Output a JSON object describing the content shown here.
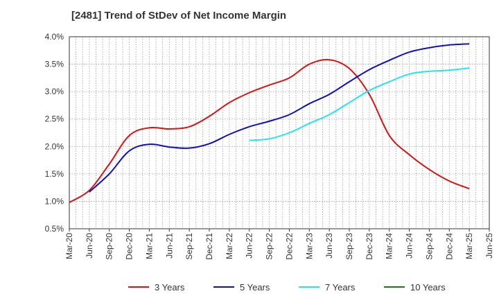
{
  "chart_data": {
    "type": "line",
    "title": "[2481]  Trend of StDev of Net Income Margin",
    "xlabel": "",
    "ylabel": "",
    "ylim": [
      0.5,
      4.0
    ],
    "yticks": [
      "4.0%",
      "3.5%",
      "3.0%",
      "2.5%",
      "2.0%",
      "1.5%",
      "1.0%",
      "0.5%"
    ],
    "x_tick_labels": [
      "Mar-20",
      "Jun-20",
      "Sep-20",
      "Dec-20",
      "Mar-21",
      "Jun-21",
      "Sep-21",
      "Dec-21",
      "Mar-22",
      "Jun-22",
      "Sep-22",
      "Dec-22",
      "Mar-23",
      "Jun-23",
      "Sep-23",
      "Dec-23",
      "Mar-24",
      "Jun-24",
      "Sep-24",
      "Dec-24",
      "Mar-25",
      "Jun-25"
    ],
    "grid": true,
    "legend_position": "bottom",
    "series": [
      {
        "name": "3 Years",
        "color": "#dd1111",
        "points": [
          [
            "Mar-20",
            0.98
          ],
          [
            "Jun-20",
            1.2
          ],
          [
            "Sep-20",
            1.68
          ],
          [
            "Dec-20",
            2.2
          ],
          [
            "Mar-21",
            2.34
          ],
          [
            "Jun-21",
            2.32
          ],
          [
            "Sep-21",
            2.36
          ],
          [
            "Dec-21",
            2.55
          ],
          [
            "Mar-22",
            2.8
          ],
          [
            "Jun-22",
            2.98
          ],
          [
            "Sep-22",
            3.12
          ],
          [
            "Dec-22",
            3.25
          ],
          [
            "Mar-23",
            3.5
          ],
          [
            "Jun-23",
            3.58
          ],
          [
            "Sep-23",
            3.42
          ],
          [
            "Dec-23",
            2.95
          ],
          [
            "Mar-24",
            2.2
          ],
          [
            "Jun-24",
            1.85
          ],
          [
            "Sep-24",
            1.58
          ],
          [
            "Dec-24",
            1.37
          ],
          [
            "Mar-25",
            1.23
          ]
        ]
      },
      {
        "name": "5 Years",
        "color": "#0d0dc8",
        "points": [
          [
            "Jun-20",
            1.17
          ],
          [
            "Sep-20",
            1.5
          ],
          [
            "Dec-20",
            1.92
          ],
          [
            "Mar-21",
            2.04
          ],
          [
            "Jun-21",
            1.99
          ],
          [
            "Sep-21",
            1.97
          ],
          [
            "Dec-21",
            2.05
          ],
          [
            "Mar-22",
            2.22
          ],
          [
            "Jun-22",
            2.36
          ],
          [
            "Sep-22",
            2.46
          ],
          [
            "Dec-22",
            2.58
          ],
          [
            "Mar-23",
            2.78
          ],
          [
            "Jun-23",
            2.95
          ],
          [
            "Sep-23",
            3.18
          ],
          [
            "Dec-23",
            3.4
          ],
          [
            "Mar-24",
            3.57
          ],
          [
            "Jun-24",
            3.72
          ],
          [
            "Sep-24",
            3.8
          ],
          [
            "Dec-24",
            3.85
          ],
          [
            "Mar-25",
            3.87
          ]
        ]
      },
      {
        "name": "7 Years",
        "color": "#22e6ee",
        "points": [
          [
            "Jun-22",
            2.11
          ],
          [
            "Sep-22",
            2.14
          ],
          [
            "Dec-22",
            2.25
          ],
          [
            "Mar-23",
            2.42
          ],
          [
            "Jun-23",
            2.58
          ],
          [
            "Sep-23",
            2.8
          ],
          [
            "Dec-23",
            3.02
          ],
          [
            "Mar-24",
            3.18
          ],
          [
            "Jun-24",
            3.32
          ],
          [
            "Sep-24",
            3.37
          ],
          [
            "Dec-24",
            3.39
          ],
          [
            "Mar-25",
            3.43
          ]
        ]
      },
      {
        "name": "10 Years",
        "color": "#1a7a1a",
        "points": []
      }
    ]
  }
}
